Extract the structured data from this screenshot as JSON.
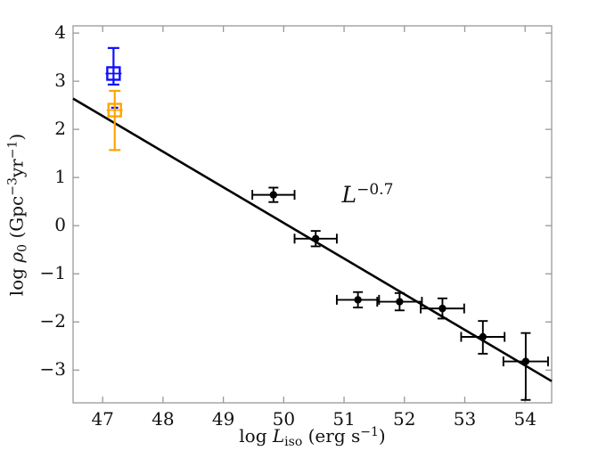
{
  "chart_data": {
    "type": "scatter",
    "title": "",
    "xlabel_segments": [
      {
        "t": "log "
      },
      {
        "t": "L",
        "style": "italic"
      },
      {
        "t": "iso",
        "style": "sub"
      },
      {
        "t": " (erg s"
      },
      {
        "t": "−1",
        "style": "sup"
      },
      {
        "t": ")"
      }
    ],
    "ylabel_segments": [
      {
        "t": "log "
      },
      {
        "t": "ρ",
        "style": "italic"
      },
      {
        "t": "0",
        "style": "sub"
      },
      {
        "t": " (Gpc"
      },
      {
        "t": "−3",
        "style": "sup"
      },
      {
        "t": "yr"
      },
      {
        "t": "−1",
        "style": "sup"
      },
      {
        "t": ")"
      }
    ],
    "xlim": [
      46.51,
      54.44
    ],
    "ylim": [
      -3.68,
      4.15
    ],
    "xticks": [
      47,
      48,
      49,
      50,
      51,
      52,
      53,
      54
    ],
    "yticks": [
      -3,
      -2,
      -1,
      0,
      1,
      2,
      3,
      4
    ],
    "grid": false,
    "legend": "none",
    "fit_line": {
      "x_start": 46.51,
      "y_start": 2.64,
      "x_end": 54.44,
      "y_end": -3.23,
      "slope_exponent": -0.7,
      "label_segments": [
        {
          "t": "L",
          "style": "italic"
        },
        {
          "t": "−0.7",
          "style": "sup"
        }
      ],
      "label_x": 51.39,
      "label_y": 0.65
    },
    "grb_points": [
      {
        "x": 49.83,
        "y": 0.64,
        "xerr": 0.35,
        "yerr_up": 0.15,
        "yerr_down": 0.15
      },
      {
        "x": 50.53,
        "y": -0.27,
        "xerr": 0.35,
        "yerr_up": 0.16,
        "yerr_down": 0.16
      },
      {
        "x": 51.23,
        "y": -1.54,
        "xerr": 0.35,
        "yerr_up": 0.16,
        "yerr_down": 0.16
      },
      {
        "x": 51.92,
        "y": -1.58,
        "xerr": 0.37,
        "yerr_up": 0.18,
        "yerr_down": 0.18
      },
      {
        "x": 52.63,
        "y": -1.72,
        "xerr": 0.36,
        "yerr_up": 0.21,
        "yerr_down": 0.21
      },
      {
        "x": 53.3,
        "y": -2.31,
        "xerr": 0.36,
        "yerr_up": 0.33,
        "yerr_down": 0.35
      },
      {
        "x": 54.01,
        "y": -2.82,
        "xerr": 0.37,
        "yerr_up": 0.59,
        "yerr_down": 0.8
      }
    ],
    "limit_markers": [
      {
        "name": "blue-open-square",
        "x": 47.18,
        "y": 3.16,
        "yerr_up": 0.53,
        "yerr_down": 0.23,
        "color": "#0f0fff"
      },
      {
        "name": "orange-open-square",
        "x": 47.2,
        "y": 2.4,
        "yerr_up": 0.4,
        "yerr_down": 0.83,
        "color": "#ffa500",
        "inner_dash": {
          "color": "#0f0fff",
          "y": 2.45
        }
      }
    ],
    "style": {
      "background_color": "#ffffff",
      "frame_color": "#999999",
      "data_color": "#000000",
      "text_color": "#111111"
    }
  }
}
